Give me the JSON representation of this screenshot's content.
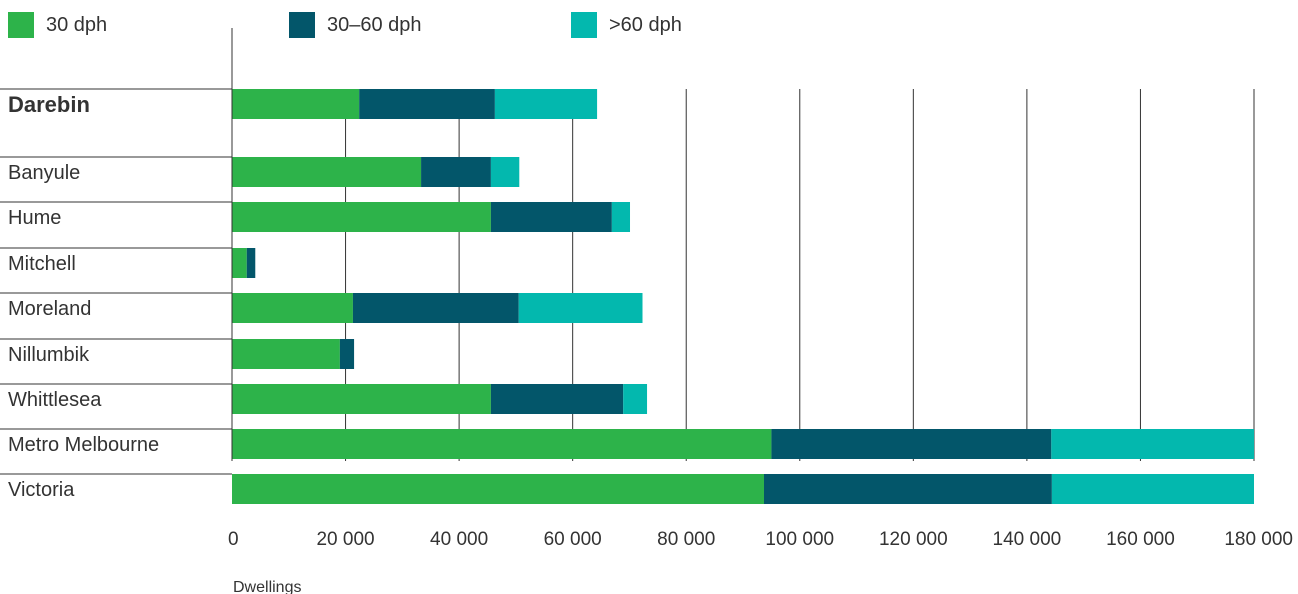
{
  "legend": [
    {
      "label": "30 dph",
      "color": "#2db34a"
    },
    {
      "label": "30–60 dph",
      "color": "#03566a"
    },
    {
      "label": ">60 dph",
      "color": "#03b8ae"
    }
  ],
  "chart_data": {
    "type": "bar",
    "orientation": "horizontal",
    "stacked": true,
    "categories": [
      "Darebin",
      "Banyule",
      "Hume",
      "Mitchell",
      "Moreland",
      "Nillumbik",
      "Whittlesea",
      "Metro Melbourne",
      "Victoria"
    ],
    "highlight_category": "Darebin",
    "series": [
      {
        "name": "30 dph",
        "color": "#2db34a",
        "values": [
          22400,
          33300,
          45600,
          2600,
          21300,
          19000,
          45600,
          95000,
          93700
        ]
      },
      {
        "name": "30–60 dph",
        "color": "#03566a",
        "values": [
          23900,
          12300,
          21300,
          1500,
          29200,
          2500,
          23300,
          49300,
          50700
        ]
      },
      {
        "name": ">60 dph",
        "color": "#03b8ae",
        "values": [
          18000,
          5000,
          3200,
          0,
          21800,
          0,
          4200,
          35700,
          35600
        ]
      }
    ],
    "xlim": [
      0,
      180000
    ],
    "xticks": [
      "0",
      "20 000",
      "40 000",
      "60 000",
      "80 000",
      "100 000",
      "120 000",
      "140 000",
      "160 000",
      "180 000"
    ],
    "xlabel": "Dwellings",
    "ylabel": "",
    "grid": true,
    "legend_position": "top"
  }
}
